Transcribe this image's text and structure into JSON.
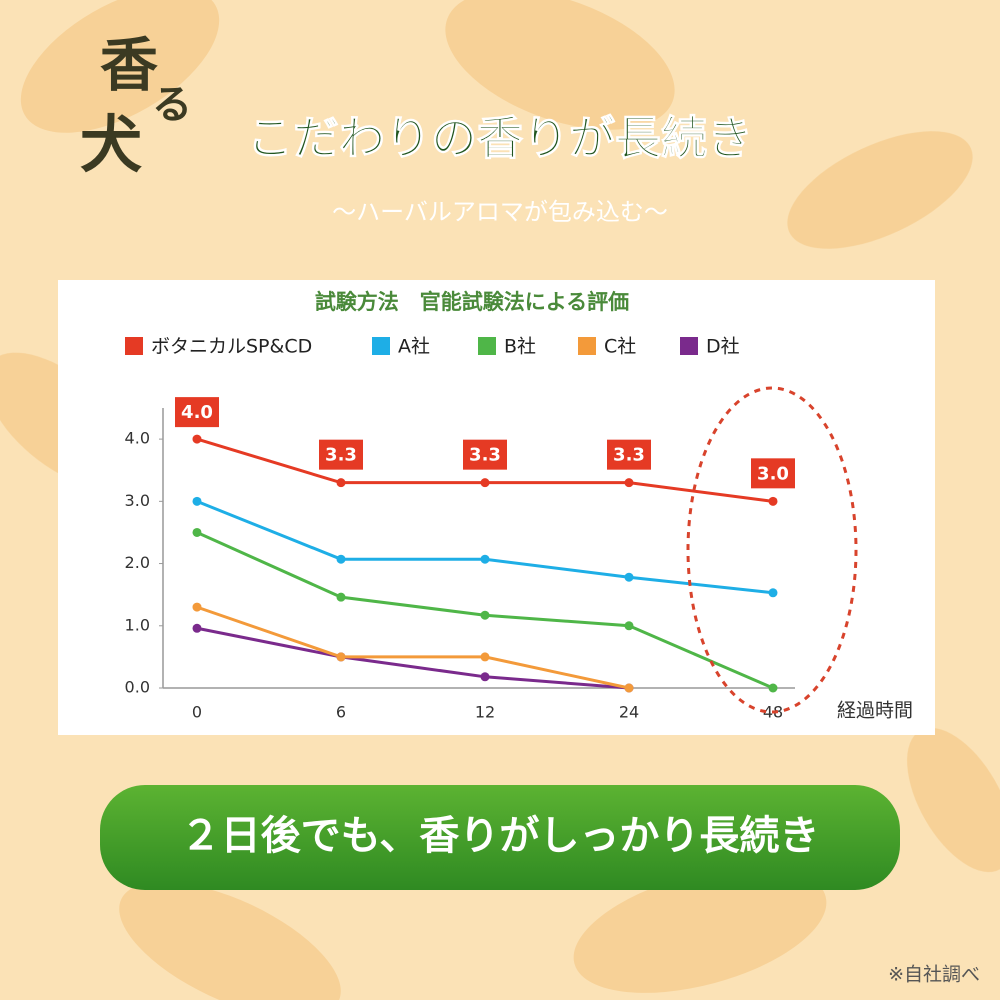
{
  "logo": [
    "香",
    "る",
    "犬"
  ],
  "headline": "こだわりの香りが長続き",
  "subheadline": "〜ハーバルアロマが包み込む〜",
  "chart_data": {
    "type": "line",
    "title": "試験方法　官能試験法による評価",
    "categories": [
      "0",
      "6",
      "12",
      "24",
      "48"
    ],
    "xlabel": "経過時間",
    "ylim": [
      0,
      4.5
    ],
    "yticks": [
      {
        "value": 0,
        "label": "0.0"
      },
      {
        "value": 1,
        "label": "1.0"
      },
      {
        "value": 2,
        "label": "2.0"
      },
      {
        "value": 3,
        "label": "3.0"
      },
      {
        "value": 4,
        "label": "4.0"
      }
    ],
    "series": [
      {
        "name": "ボタニカルSP&CD",
        "color": "#e53a24",
        "values": [
          4.0,
          3.3,
          3.3,
          3.3,
          3.0
        ],
        "value_labels": [
          "4.0",
          "3.3",
          "3.3",
          "3.3",
          "3.0"
        ]
      },
      {
        "name": "A社",
        "color": "#1eaee6",
        "values": [
          3.0,
          2.07,
          2.07,
          1.78,
          1.53
        ]
      },
      {
        "name": "B社",
        "color": "#4fb648",
        "values": [
          2.5,
          1.46,
          1.17,
          1.0,
          0
        ]
      },
      {
        "name": "C社",
        "color": "#f39a3a",
        "values": [
          1.3,
          0.5,
          0.5,
          0,
          null
        ]
      },
      {
        "name": "D社",
        "color": "#7a2a8c",
        "values": [
          0.96,
          0.5,
          0.18,
          0,
          null
        ]
      }
    ]
  },
  "banner": "２日後でも、香りがしっかり長続き",
  "note": "※自社調べ"
}
